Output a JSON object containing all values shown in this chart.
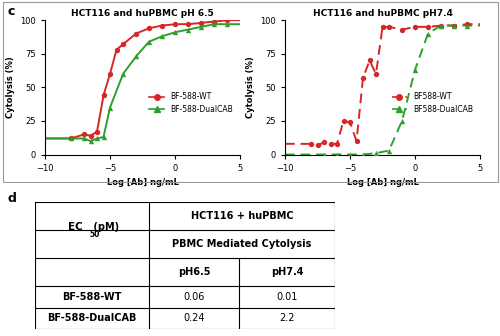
{
  "panel_c_title": "c",
  "panel_d_title": "d",
  "plot1_title": "HCT116 and huPBMC pH 6.5",
  "plot2_title": "HCT116 and huPBMC pH7.4",
  "xlabel": "Log [Ab] ng/mL",
  "ylabel": "Cytolysis (%)",
  "xlim": [
    -10,
    5
  ],
  "ylim": [
    0,
    100
  ],
  "xticks": [
    -10,
    -5,
    0,
    5
  ],
  "yticks": [
    0,
    25,
    50,
    75,
    100
  ],
  "wt_color": "#d62728",
  "dual_color": "#2ca02c",
  "wt_ph65_x": [
    -8,
    -7,
    -6.5,
    -6,
    -5.5,
    -5,
    -4.5,
    -4,
    -3,
    -2,
    -1,
    0,
    1,
    2,
    3,
    4
  ],
  "wt_ph65_y": [
    12,
    15,
    14,
    17,
    44,
    60,
    78,
    82,
    90,
    94,
    96,
    97,
    97,
    98,
    99,
    100
  ],
  "dual_ph65_x": [
    -8,
    -7,
    -6.5,
    -6,
    -5.5,
    -5,
    -4,
    -3,
    -2,
    -1,
    0,
    1,
    2,
    3,
    4
  ],
  "dual_ph65_y": [
    12,
    12,
    10,
    12,
    13,
    35,
    60,
    73,
    84,
    88,
    91,
    93,
    95,
    97,
    97
  ],
  "wt_ph74_x": [
    -8,
    -7.5,
    -7,
    -6.5,
    -6,
    -5.5,
    -5,
    -4.5,
    -4,
    -3.5,
    -3,
    -2.5,
    -2,
    -1,
    0,
    1,
    2,
    3,
    4
  ],
  "wt_ph74_y": [
    8,
    7,
    9,
    8,
    8,
    25,
    24,
    10,
    57,
    70,
    60,
    95,
    95,
    93,
    95,
    95,
    96,
    96,
    97
  ],
  "dual_ph74_x": [
    -7,
    -6,
    -5,
    -4,
    -3,
    -2,
    -1,
    0,
    1,
    2,
    3,
    4
  ],
  "dual_ph74_y": [
    0,
    0,
    0,
    0,
    1,
    3,
    25,
    63,
    90,
    96,
    96,
    96
  ],
  "legend1_labels": [
    "BF-588-WT",
    "BF-588-DualCAB"
  ],
  "legend2_labels": [
    "BF588-WT",
    "BF588-DualCAB"
  ],
  "table_header1": "HCT116 + huPBMC",
  "table_header2": "PBMC Mediated Cytolysis",
  "table_col1": "pH6.5",
  "table_col2": "pH7.4",
  "table_row1_label": "BF-588-WT",
  "table_row2_label": "BF-588-DualCAB",
  "table_row1_v1": "0.06",
  "table_row1_v2": "0.01",
  "table_row2_v1": "0.24",
  "table_row2_v2": "2.2"
}
